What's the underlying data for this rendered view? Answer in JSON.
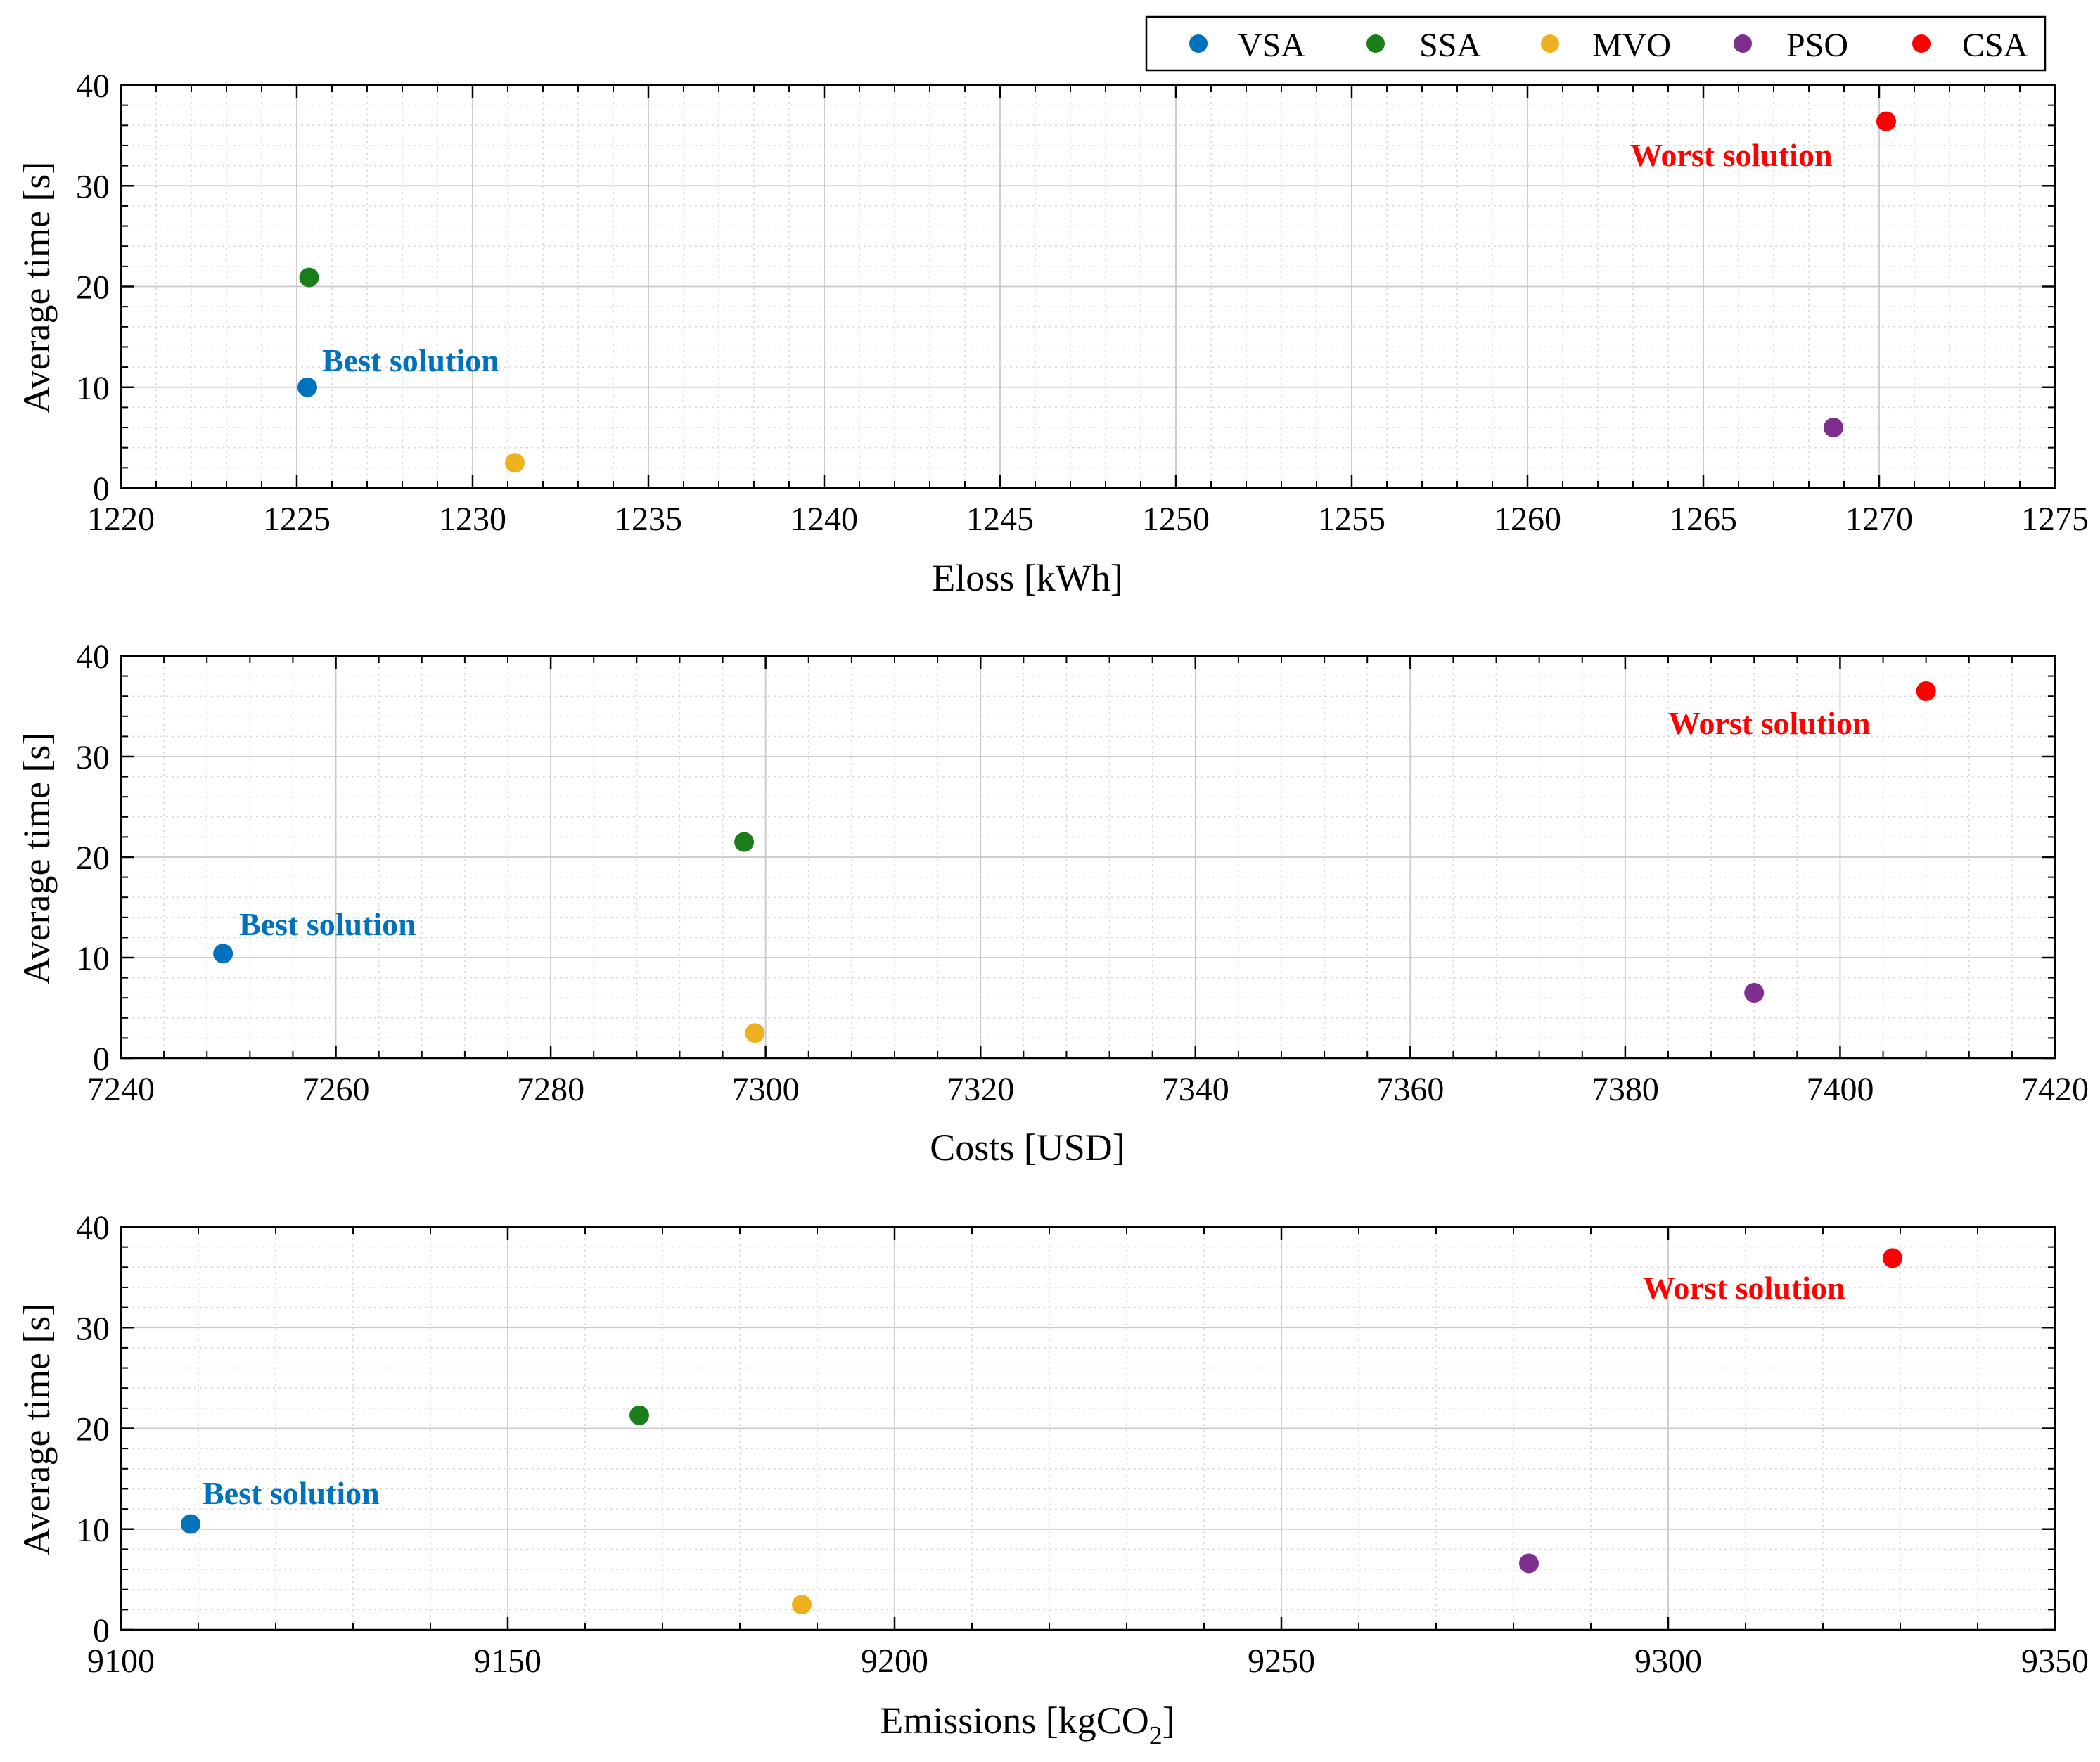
{
  "legend": {
    "entries": [
      {
        "name": "VSA",
        "color": "#0072BD"
      },
      {
        "name": "SSA",
        "color": "#1A7F1A"
      },
      {
        "name": "MVO",
        "color": "#EDB120"
      },
      {
        "name": "PSO",
        "color": "#7E2F8E"
      },
      {
        "name": "CSA",
        "color": "#FF0000"
      }
    ]
  },
  "chart_data": [
    {
      "type": "scatter",
      "title": "",
      "xlabel": "Eloss [kWh]",
      "ylabel": "Average time [s]",
      "xlim": [
        1220,
        1275
      ],
      "ylim": [
        0,
        40
      ],
      "xticks": [
        1220,
        1225,
        1230,
        1235,
        1240,
        1245,
        1250,
        1255,
        1260,
        1265,
        1270,
        1275
      ],
      "yticks": [
        0,
        10,
        20,
        30,
        40
      ],
      "series": [
        {
          "name": "VSA",
          "x": [
            1225.3
          ],
          "y": [
            10.0
          ]
        },
        {
          "name": "SSA",
          "x": [
            1225.35
          ],
          "y": [
            20.9
          ]
        },
        {
          "name": "MVO",
          "x": [
            1231.2
          ],
          "y": [
            2.5
          ]
        },
        {
          "name": "PSO",
          "x": [
            1268.7
          ],
          "y": [
            6.0
          ]
        },
        {
          "name": "CSA",
          "x": [
            1270.2
          ],
          "y": [
            36.4
          ]
        }
      ],
      "annotations": [
        {
          "text": "Best solution",
          "series": "VSA",
          "color": "#0072BD"
        },
        {
          "text": "Worst solution",
          "series": "CSA",
          "color": "#FF0000"
        }
      ]
    },
    {
      "type": "scatter",
      "title": "",
      "xlabel": "Costs [USD]",
      "ylabel": "Average time [s]",
      "xlim": [
        7240,
        7420
      ],
      "ylim": [
        0,
        40
      ],
      "xticks": [
        7240,
        7260,
        7280,
        7300,
        7320,
        7340,
        7360,
        7380,
        7400,
        7420
      ],
      "yticks": [
        0,
        10,
        20,
        30,
        40
      ],
      "series": [
        {
          "name": "VSA",
          "x": [
            7249.5
          ],
          "y": [
            10.4
          ]
        },
        {
          "name": "SSA",
          "x": [
            7298
          ],
          "y": [
            21.5
          ]
        },
        {
          "name": "MVO",
          "x": [
            7299
          ],
          "y": [
            2.5
          ]
        },
        {
          "name": "PSO",
          "x": [
            7392
          ],
          "y": [
            6.5
          ]
        },
        {
          "name": "CSA",
          "x": [
            7408
          ],
          "y": [
            36.5
          ]
        }
      ],
      "annotations": [
        {
          "text": "Best solution",
          "series": "VSA",
          "color": "#0072BD"
        },
        {
          "text": "Worst solution",
          "series": "CSA",
          "color": "#FF0000"
        }
      ]
    },
    {
      "type": "scatter",
      "title": "",
      "xlabel": "Emissions [kgCO",
      "xlabel_sub": "2",
      "xlabel_end": "]",
      "ylabel": "Average time [s]",
      "xlim": [
        9100,
        9350
      ],
      "ylim": [
        0,
        40
      ],
      "xticks": [
        9100,
        9150,
        9200,
        9250,
        9300,
        9350
      ],
      "yticks": [
        0,
        10,
        20,
        30,
        40
      ],
      "series": [
        {
          "name": "VSA",
          "x": [
            9109
          ],
          "y": [
            10.5
          ]
        },
        {
          "name": "SSA",
          "x": [
            9167
          ],
          "y": [
            21.3
          ]
        },
        {
          "name": "MVO",
          "x": [
            9188
          ],
          "y": [
            2.5
          ]
        },
        {
          "name": "PSO",
          "x": [
            9282
          ],
          "y": [
            6.6
          ]
        },
        {
          "name": "CSA",
          "x": [
            9329
          ],
          "y": [
            36.9
          ]
        }
      ],
      "annotations": [
        {
          "text": "Best solution",
          "series": "VSA",
          "color": "#0072BD"
        },
        {
          "text": "Worst solution",
          "series": "CSA",
          "color": "#FF0000"
        }
      ]
    }
  ]
}
